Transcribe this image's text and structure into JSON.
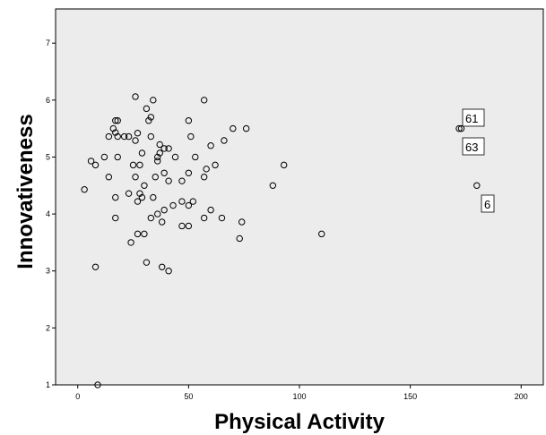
{
  "chart_data": {
    "type": "scatter",
    "xlabel": "Physical Activity",
    "ylabel": "Innovativeness",
    "xlim": [
      -10,
      210
    ],
    "ylim": [
      1,
      7.6
    ],
    "x_ticks": [
      0,
      50,
      100,
      150,
      200
    ],
    "y_ticks": [
      1,
      2,
      3,
      4,
      5,
      6,
      7
    ],
    "grid": false,
    "background": "#ececec",
    "points": [
      {
        "x": 26,
        "y": 6.06
      },
      {
        "x": 34,
        "y": 6.0
      },
      {
        "x": 57,
        "y": 6.0
      },
      {
        "x": 31,
        "y": 5.85
      },
      {
        "x": 17,
        "y": 5.64
      },
      {
        "x": 18,
        "y": 5.64
      },
      {
        "x": 32,
        "y": 5.64
      },
      {
        "x": 50,
        "y": 5.64
      },
      {
        "x": 33,
        "y": 5.7
      },
      {
        "x": 16,
        "y": 5.5
      },
      {
        "x": 70,
        "y": 5.5
      },
      {
        "x": 76,
        "y": 5.5
      },
      {
        "x": 14,
        "y": 5.36
      },
      {
        "x": 18,
        "y": 5.36
      },
      {
        "x": 21,
        "y": 5.36
      },
      {
        "x": 23,
        "y": 5.36
      },
      {
        "x": 27,
        "y": 5.42
      },
      {
        "x": 33,
        "y": 5.36
      },
      {
        "x": 51,
        "y": 5.36
      },
      {
        "x": 17,
        "y": 5.43
      },
      {
        "x": 26,
        "y": 5.29
      },
      {
        "x": 37,
        "y": 5.22
      },
      {
        "x": 39,
        "y": 5.15
      },
      {
        "x": 41,
        "y": 5.15
      },
      {
        "x": 60,
        "y": 5.2
      },
      {
        "x": 66,
        "y": 5.29
      },
      {
        "x": 29,
        "y": 5.07
      },
      {
        "x": 37,
        "y": 5.07
      },
      {
        "x": 36,
        "y": 5.0
      },
      {
        "x": 12,
        "y": 5.0
      },
      {
        "x": 18,
        "y": 5.0
      },
      {
        "x": 44,
        "y": 5.0
      },
      {
        "x": 53,
        "y": 5.0
      },
      {
        "x": 36,
        "y": 4.93
      },
      {
        "x": 6,
        "y": 4.93
      },
      {
        "x": 8,
        "y": 4.86
      },
      {
        "x": 25,
        "y": 4.86
      },
      {
        "x": 28,
        "y": 4.86
      },
      {
        "x": 62,
        "y": 4.86
      },
      {
        "x": 93,
        "y": 4.86
      },
      {
        "x": 58,
        "y": 4.79
      },
      {
        "x": 39,
        "y": 4.72
      },
      {
        "x": 50,
        "y": 4.72
      },
      {
        "x": 14,
        "y": 4.65
      },
      {
        "x": 26,
        "y": 4.65
      },
      {
        "x": 35,
        "y": 4.65
      },
      {
        "x": 57,
        "y": 4.65
      },
      {
        "x": 30,
        "y": 4.5
      },
      {
        "x": 41,
        "y": 4.58
      },
      {
        "x": 47,
        "y": 4.58
      },
      {
        "x": 88,
        "y": 4.5
      },
      {
        "x": 3,
        "y": 4.43
      },
      {
        "x": 23,
        "y": 4.36
      },
      {
        "x": 28,
        "y": 4.36
      },
      {
        "x": 17,
        "y": 4.29
      },
      {
        "x": 29,
        "y": 4.29
      },
      {
        "x": 34,
        "y": 4.29
      },
      {
        "x": 27,
        "y": 4.22
      },
      {
        "x": 43,
        "y": 4.15
      },
      {
        "x": 47,
        "y": 4.22
      },
      {
        "x": 50,
        "y": 4.15
      },
      {
        "x": 52,
        "y": 4.22
      },
      {
        "x": 36,
        "y": 4.0
      },
      {
        "x": 39,
        "y": 4.07
      },
      {
        "x": 60,
        "y": 4.07
      },
      {
        "x": 33,
        "y": 3.93
      },
      {
        "x": 17,
        "y": 3.93
      },
      {
        "x": 57,
        "y": 3.93
      },
      {
        "x": 65,
        "y": 3.93
      },
      {
        "x": 38,
        "y": 3.86
      },
      {
        "x": 74,
        "y": 3.86
      },
      {
        "x": 47,
        "y": 3.79
      },
      {
        "x": 50,
        "y": 3.79
      },
      {
        "x": 27,
        "y": 3.65
      },
      {
        "x": 30,
        "y": 3.65
      },
      {
        "x": 110,
        "y": 3.65
      },
      {
        "x": 24,
        "y": 3.5
      },
      {
        "x": 73,
        "y": 3.57
      },
      {
        "x": 31,
        "y": 3.15
      },
      {
        "x": 38,
        "y": 3.07
      },
      {
        "x": 8,
        "y": 3.07
      },
      {
        "x": 41,
        "y": 3.0
      },
      {
        "x": 9,
        "y": 1.0
      },
      {
        "x": 173,
        "y": 5.5
      },
      {
        "x": 172,
        "y": 5.5
      },
      {
        "x": 180,
        "y": 4.5
      }
    ],
    "annotations": [
      {
        "text": "61"
      },
      {
        "text": "63"
      },
      {
        "text": "6"
      }
    ]
  }
}
